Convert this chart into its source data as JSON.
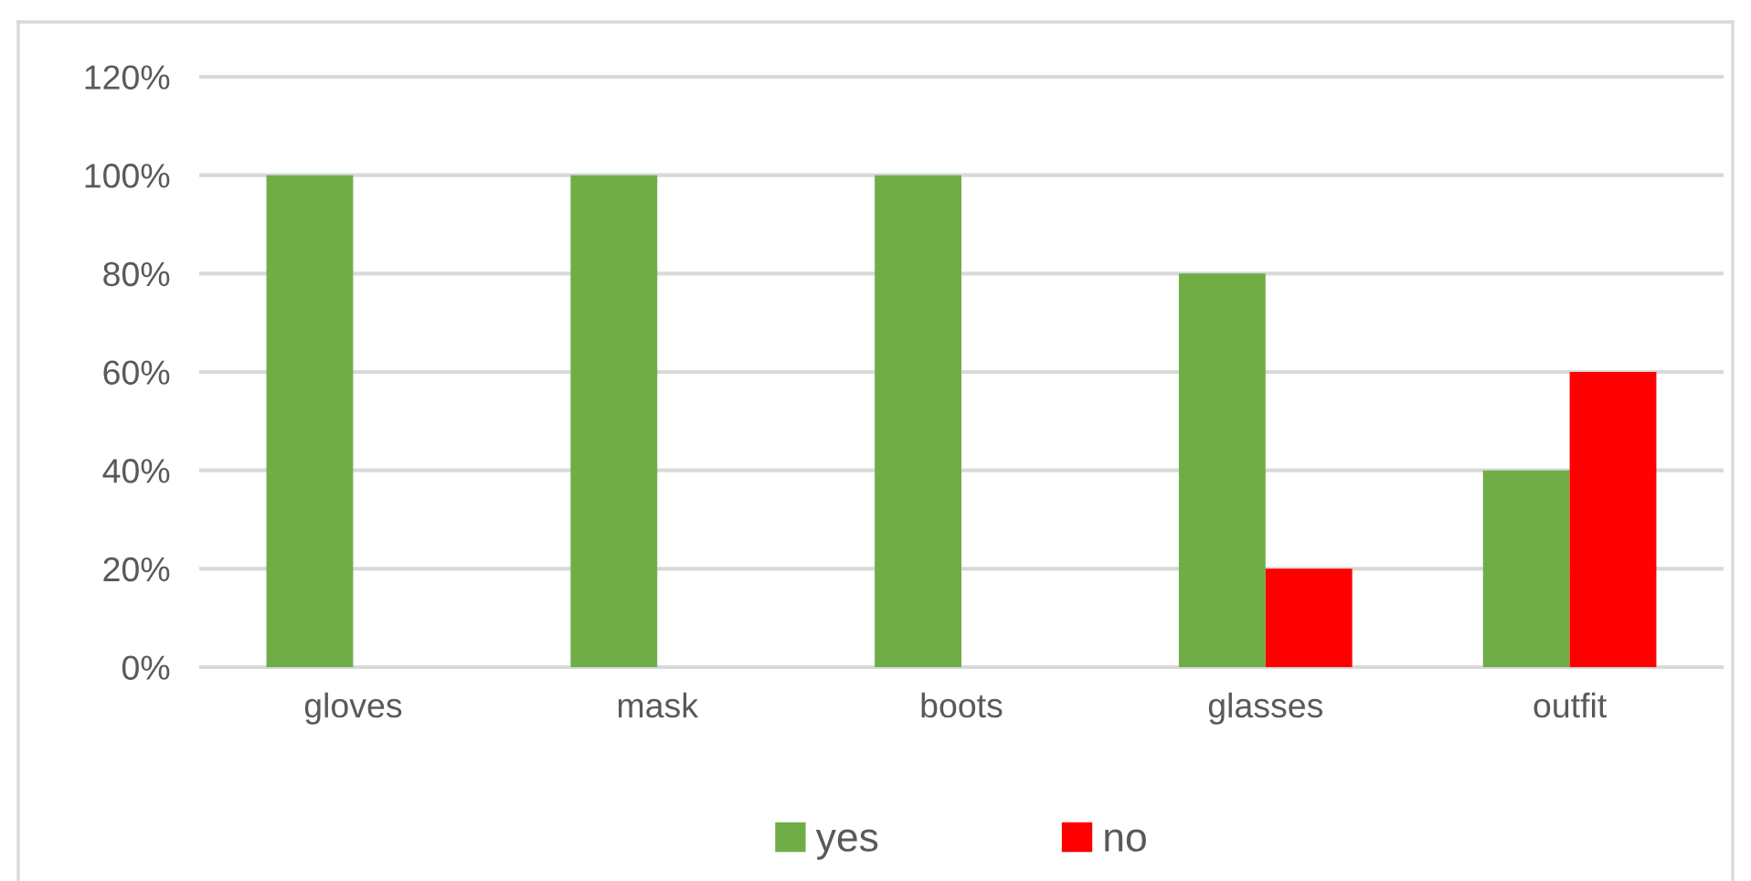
{
  "chart_data": {
    "type": "bar",
    "categories": [
      "gloves",
      "mask",
      "boots",
      "glasses",
      "outfit"
    ],
    "series": [
      {
        "name": "yes",
        "color": "#70ad47",
        "values": [
          100,
          100,
          100,
          80,
          40
        ]
      },
      {
        "name": "no",
        "color": "#ff0000",
        "values": [
          0,
          0,
          0,
          20,
          60
        ]
      }
    ],
    "ylim": [
      0,
      120
    ],
    "yticks": [
      {
        "value": 0,
        "label": "0%"
      },
      {
        "value": 20,
        "label": "20%"
      },
      {
        "value": 40,
        "label": "40%"
      },
      {
        "value": 60,
        "label": "60%"
      },
      {
        "value": 80,
        "label": "80%"
      },
      {
        "value": 100,
        "label": "100%"
      },
      {
        "value": 120,
        "label": "120%"
      }
    ],
    "grid": "y",
    "legend": "bottom"
  }
}
